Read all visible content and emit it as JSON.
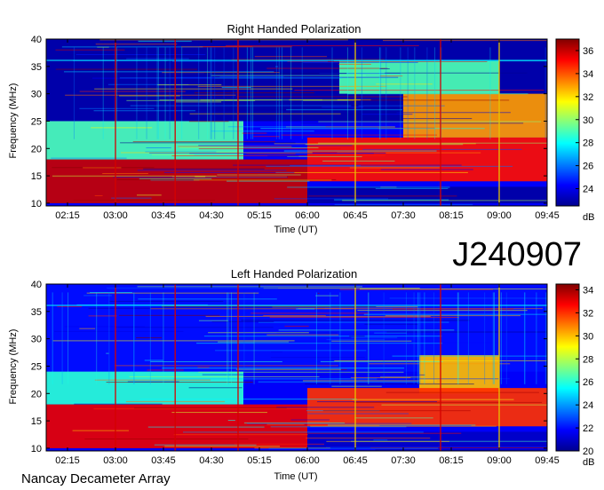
{
  "header": {
    "id_label": "J240907"
  },
  "footer": {
    "instrument": "Nancay Decameter Array"
  },
  "chart_data": [
    {
      "type": "heatmap",
      "title": "Right Handed Polarization",
      "xlabel": "Time (UT)",
      "ylabel": "Frequency (MHz)",
      "x_ticks": [
        "02:15",
        "03:00",
        "03:45",
        "04:30",
        "05:15",
        "06:00",
        "06:45",
        "07:30",
        "08:15",
        "09:00",
        "09:45"
      ],
      "x_range": [
        "01:55",
        "09:45"
      ],
      "y_ticks": [
        10,
        15,
        20,
        25,
        30,
        35,
        40
      ],
      "ylim": [
        9.5,
        40
      ],
      "colorbar": {
        "unit": "dB",
        "ticks": [
          24,
          26,
          28,
          30,
          32,
          34,
          36
        ],
        "range": [
          22.5,
          37
        ]
      },
      "markers": [
        {
          "time": "03:00",
          "color": "red"
        },
        {
          "time": "03:56",
          "color": "red"
        },
        {
          "time": "04:55",
          "color": "red"
        },
        {
          "time": "06:45",
          "color": "gold"
        },
        {
          "time": "08:05",
          "color": "red"
        },
        {
          "time": "09:00",
          "color": "gold"
        }
      ],
      "regions": [
        {
          "t0": "01:55",
          "t1": "06:00",
          "f0": 10,
          "f1": 18,
          "level": 36
        },
        {
          "t0": "06:00",
          "t1": "09:45",
          "f0": 10,
          "f1": 13,
          "level": 23
        },
        {
          "t0": "06:00",
          "t1": "09:45",
          "f0": 14,
          "f1": 22,
          "level": 35
        },
        {
          "t0": "01:55",
          "t1": "05:00",
          "f0": 18,
          "f1": 25,
          "level": 29
        },
        {
          "t0": "07:30",
          "t1": "09:45",
          "f0": 22,
          "f1": 30,
          "level": 33
        },
        {
          "t0": "06:30",
          "t1": "09:00",
          "f0": 30,
          "f1": 36,
          "level": 29
        },
        {
          "t0": "01:55",
          "t1": "09:45",
          "f0": 25,
          "f1": 40,
          "level": 23
        }
      ]
    },
    {
      "type": "heatmap",
      "title": "Left Handed Polarization",
      "xlabel": "Time (UT)",
      "ylabel": "Frequency (MHz)",
      "x_ticks": [
        "02:15",
        "03:00",
        "03:45",
        "04:30",
        "05:15",
        "06:00",
        "06:45",
        "07:30",
        "08:15",
        "09:00",
        "09:45"
      ],
      "x_range": [
        "01:55",
        "09:45"
      ],
      "y_ticks": [
        10,
        15,
        20,
        25,
        30,
        35,
        40
      ],
      "ylim": [
        9.5,
        40
      ],
      "colorbar": {
        "unit": "dB",
        "ticks": [
          20,
          22,
          24,
          26,
          28,
          30,
          32,
          34
        ],
        "range": [
          20,
          34.5
        ]
      },
      "markers": [
        {
          "time": "03:00",
          "color": "red"
        },
        {
          "time": "03:56",
          "color": "red"
        },
        {
          "time": "04:55",
          "color": "red"
        },
        {
          "time": "06:45",
          "color": "gold"
        },
        {
          "time": "08:05",
          "color": "red"
        },
        {
          "time": "09:00",
          "color": "gold"
        }
      ],
      "regions": [
        {
          "t0": "01:55",
          "t1": "06:00",
          "f0": 10,
          "f1": 18,
          "level": 33
        },
        {
          "t0": "06:00",
          "t1": "09:45",
          "f0": 10,
          "f1": 13,
          "level": 21
        },
        {
          "t0": "06:00",
          "t1": "09:45",
          "f0": 14,
          "f1": 21,
          "level": 32
        },
        {
          "t0": "01:55",
          "t1": "05:00",
          "f0": 18,
          "f1": 24,
          "level": 26
        },
        {
          "t0": "07:45",
          "t1": "09:00",
          "f0": 20,
          "f1": 27,
          "level": 30
        },
        {
          "t0": "01:55",
          "t1": "09:45",
          "f0": 24,
          "f1": 40,
          "level": 22
        }
      ]
    }
  ]
}
